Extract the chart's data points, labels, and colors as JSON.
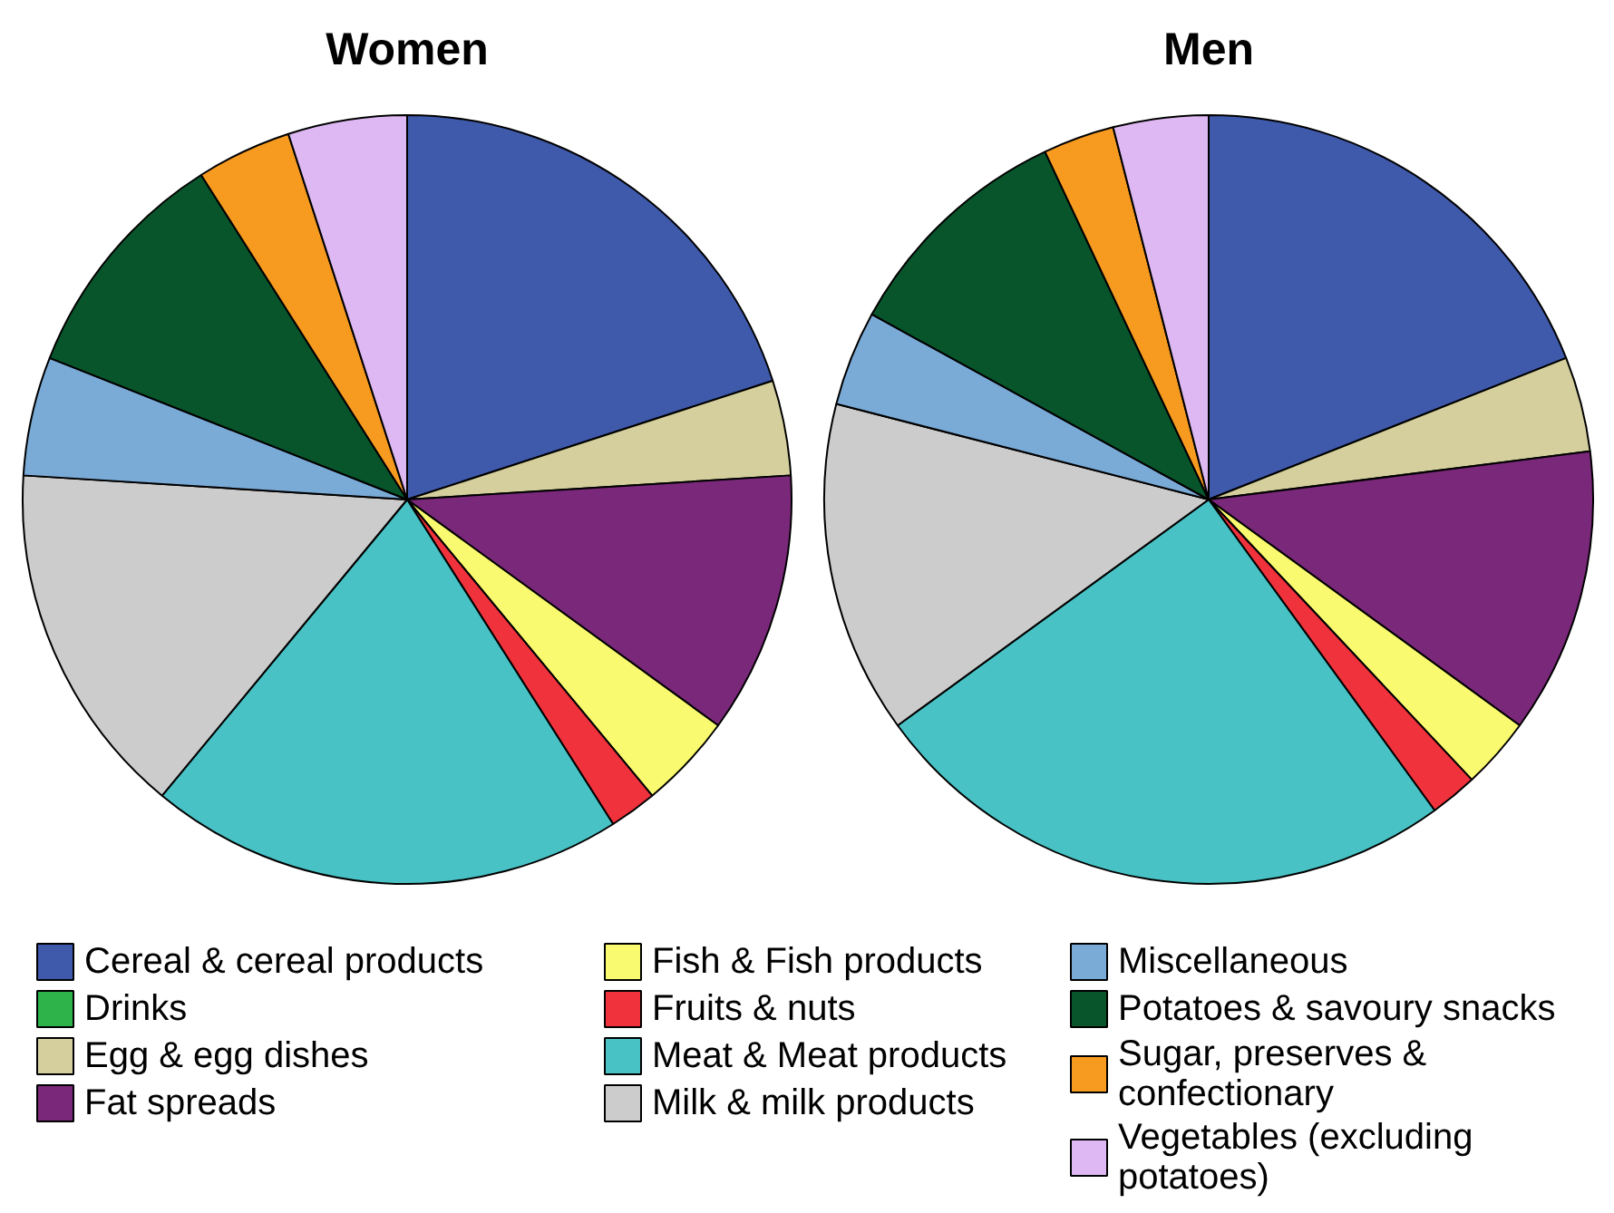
{
  "chart_data": {
    "type": "pie",
    "categories": [
      "Cereal & cereal products",
      "Drinks",
      "Egg & egg dishes",
      "Fat spreads",
      "Fish & Fish products",
      "Fruits & nuts",
      "Meat & Meat products",
      "Milk & milk products",
      "Miscellaneous",
      "Potatoes & savoury snacks",
      "Sugar, preserves & confectionary",
      "Vegetables (excluding potatoes)"
    ],
    "colors": [
      "#3f59ab",
      "#2db34a",
      "#d4cf9c",
      "#7a287a",
      "#fafa70",
      "#f0323c",
      "#48c2c5",
      "#cccccc",
      "#7aaad6",
      "#08552c",
      "#f79a20",
      "#ddb8f2"
    ],
    "series": [
      {
        "name": "Women",
        "values": [
          20,
          0,
          4,
          11,
          4,
          2,
          20,
          15,
          5,
          10,
          4,
          5
        ]
      },
      {
        "name": "Men",
        "values": [
          19,
          0,
          4,
          12,
          3,
          2,
          25,
          14,
          4,
          10,
          3,
          4
        ]
      }
    ],
    "legend": "bottom"
  }
}
